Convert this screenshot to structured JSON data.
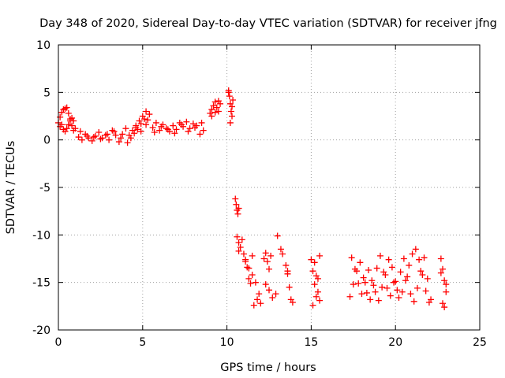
{
  "chart_data": {
    "type": "scatter",
    "title": "Day 348 of 2020, Sidereal Day-to-day VTEC variation (SDTVAR) for receiver jfng",
    "xlabel": "GPS time / hours",
    "ylabel": "SDTVAR / TECUs",
    "xlim": [
      0,
      25
    ],
    "ylim": [
      -20,
      10
    ],
    "xticks": [
      0,
      5,
      10,
      15,
      20,
      25
    ],
    "yticks": [
      -20,
      -15,
      -10,
      -5,
      0,
      5,
      10
    ],
    "grid": true,
    "marker": "+",
    "color": "#ff0000",
    "series": [
      {
        "name": "SDTVAR",
        "x": [
          0.0,
          0.1,
          0.2,
          0.3,
          0.4,
          0.5,
          0.6,
          0.7,
          0.8,
          0.9,
          1.0,
          0.1,
          0.2,
          0.3,
          0.4,
          0.5,
          0.6,
          0.7,
          0.8,
          0.9,
          1.2,
          1.4,
          1.6,
          1.8,
          2.0,
          2.2,
          2.4,
          2.6,
          2.8,
          3.0,
          3.2,
          3.4,
          3.6,
          3.8,
          4.0,
          1.3,
          1.7,
          2.1,
          2.5,
          2.9,
          3.3,
          3.7,
          4.1,
          4.2,
          4.4,
          4.6,
          4.8,
          5.0,
          5.2,
          5.4,
          4.3,
          4.5,
          4.7,
          4.9,
          5.1,
          5.3,
          4.6,
          4.9,
          5.2,
          5.6,
          5.8,
          6.0,
          6.2,
          6.4,
          6.6,
          6.8,
          7.0,
          7.2,
          7.4,
          7.6,
          7.8,
          8.0,
          8.2,
          8.4,
          8.6,
          5.7,
          6.1,
          6.5,
          6.9,
          7.3,
          7.7,
          8.1,
          8.5,
          9.0,
          9.1,
          9.2,
          9.3,
          9.4,
          9.5,
          9.6,
          9.1,
          9.3,
          9.5,
          10.1,
          10.15,
          10.2,
          10.25,
          10.3,
          10.35,
          10.2,
          10.3,
          10.1,
          10.5,
          10.55,
          10.6,
          10.65,
          10.7,
          10.6,
          10.7,
          10.8,
          10.9,
          10.7,
          11.0,
          11.1,
          11.2,
          11.3,
          11.4,
          11.5,
          11.1,
          11.3,
          11.5,
          11.7,
          11.9,
          11.6,
          11.8,
          12.0,
          12.2,
          12.3,
          12.4,
          12.5,
          12.6,
          12.3,
          12.5,
          12.7,
          12.9,
          13.0,
          13.2,
          13.3,
          13.5,
          13.6,
          13.7,
          13.8,
          13.6,
          13.9,
          15.0,
          15.1,
          15.2,
          15.3,
          15.4,
          15.5,
          15.1,
          15.3,
          15.5,
          15.2,
          15.4,
          17.3,
          17.5,
          17.7,
          17.9,
          18.1,
          18.3,
          18.5,
          18.7,
          18.9,
          19.1,
          19.3,
          19.5,
          19.7,
          19.9,
          17.4,
          17.6,
          17.8,
          18.0,
          18.2,
          18.4,
          18.6,
          18.8,
          19.0,
          19.2,
          19.4,
          19.6,
          19.8,
          20.0,
          20.1,
          20.3,
          20.5,
          20.7,
          20.9,
          21.1,
          21.3,
          21.5,
          21.7,
          21.9,
          22.1,
          20.2,
          20.4,
          20.6,
          20.8,
          21.0,
          21.2,
          21.4,
          21.6,
          21.8,
          22.0,
          22.7,
          22.8,
          22.9,
          23.0,
          22.8,
          22.9,
          23.0,
          22.7
        ],
        "y": [
          1.8,
          2.4,
          2.9,
          3.2,
          3.3,
          3.4,
          2.8,
          2.2,
          1.5,
          1.0,
          1.2,
          1.4,
          1.6,
          1.1,
          0.9,
          1.2,
          1.6,
          2.0,
          2.3,
          2.0,
          0.3,
          0.0,
          0.6,
          0.2,
          -0.1,
          0.4,
          0.8,
          0.2,
          0.5,
          0.0,
          1.0,
          0.5,
          -0.2,
          0.6,
          1.2,
          0.9,
          0.4,
          0.3,
          0.1,
          0.6,
          0.9,
          0.2,
          -0.3,
          0.5,
          1.0,
          1.5,
          2.0,
          2.5,
          3.0,
          2.7,
          0.2,
          0.7,
          1.1,
          1.7,
          2.2,
          2.1,
          1.3,
          0.9,
          1.6,
          1.3,
          1.8,
          1.0,
          1.6,
          1.2,
          0.9,
          1.5,
          1.1,
          1.8,
          1.4,
          1.9,
          1.2,
          1.7,
          1.5,
          0.6,
          1.0,
          0.8,
          1.4,
          1.1,
          0.7,
          1.6,
          0.9,
          1.3,
          1.8,
          2.8,
          3.2,
          3.6,
          4.0,
          3.4,
          3.0,
          3.8,
          2.5,
          2.9,
          4.1,
          5.2,
          4.6,
          3.8,
          3.0,
          2.5,
          4.2,
          1.8,
          3.5,
          5.0,
          -6.2,
          -6.8,
          -7.4,
          -7.8,
          -7.2,
          -10.2,
          -10.8,
          -11.3,
          -10.5,
          -11.7,
          -12.0,
          -12.6,
          -13.4,
          -14.6,
          -15.1,
          -12.2,
          -12.8,
          -13.5,
          -14.2,
          -15.0,
          -16.2,
          -17.4,
          -16.8,
          -17.2,
          -12.5,
          -11.9,
          -12.8,
          -13.6,
          -12.2,
          -15.2,
          -15.8,
          -16.6,
          -16.2,
          -10.1,
          -11.5,
          -12.0,
          -13.2,
          -14.1,
          -15.5,
          -16.8,
          -13.8,
          -17.1,
          -12.6,
          -13.8,
          -15.2,
          -16.5,
          -16.0,
          -12.2,
          -17.4,
          -14.3,
          -16.9,
          -12.9,
          -14.6,
          -16.5,
          -15.2,
          -13.8,
          -12.9,
          -14.5,
          -16.1,
          -16.8,
          -15.3,
          -13.5,
          -12.2,
          -13.9,
          -15.6,
          -16.4,
          -15.0,
          -12.4,
          -13.6,
          -15.1,
          -16.2,
          -15.0,
          -13.7,
          -14.8,
          -16.0,
          -16.9,
          -15.5,
          -14.2,
          -12.6,
          -13.4,
          -14.9,
          -15.8,
          -13.9,
          -12.5,
          -14.4,
          -16.2,
          -17.0,
          -15.6,
          -13.8,
          -12.4,
          -14.6,
          -16.8,
          -16.6,
          -16.0,
          -14.8,
          -13.2,
          -12.0,
          -11.5,
          -12.6,
          -14.2,
          -15.9,
          -17.1,
          -12.5,
          -13.6,
          -14.8,
          -16.0,
          -17.2,
          -17.6,
          -15.2,
          -14.0
        ]
      }
    ]
  }
}
